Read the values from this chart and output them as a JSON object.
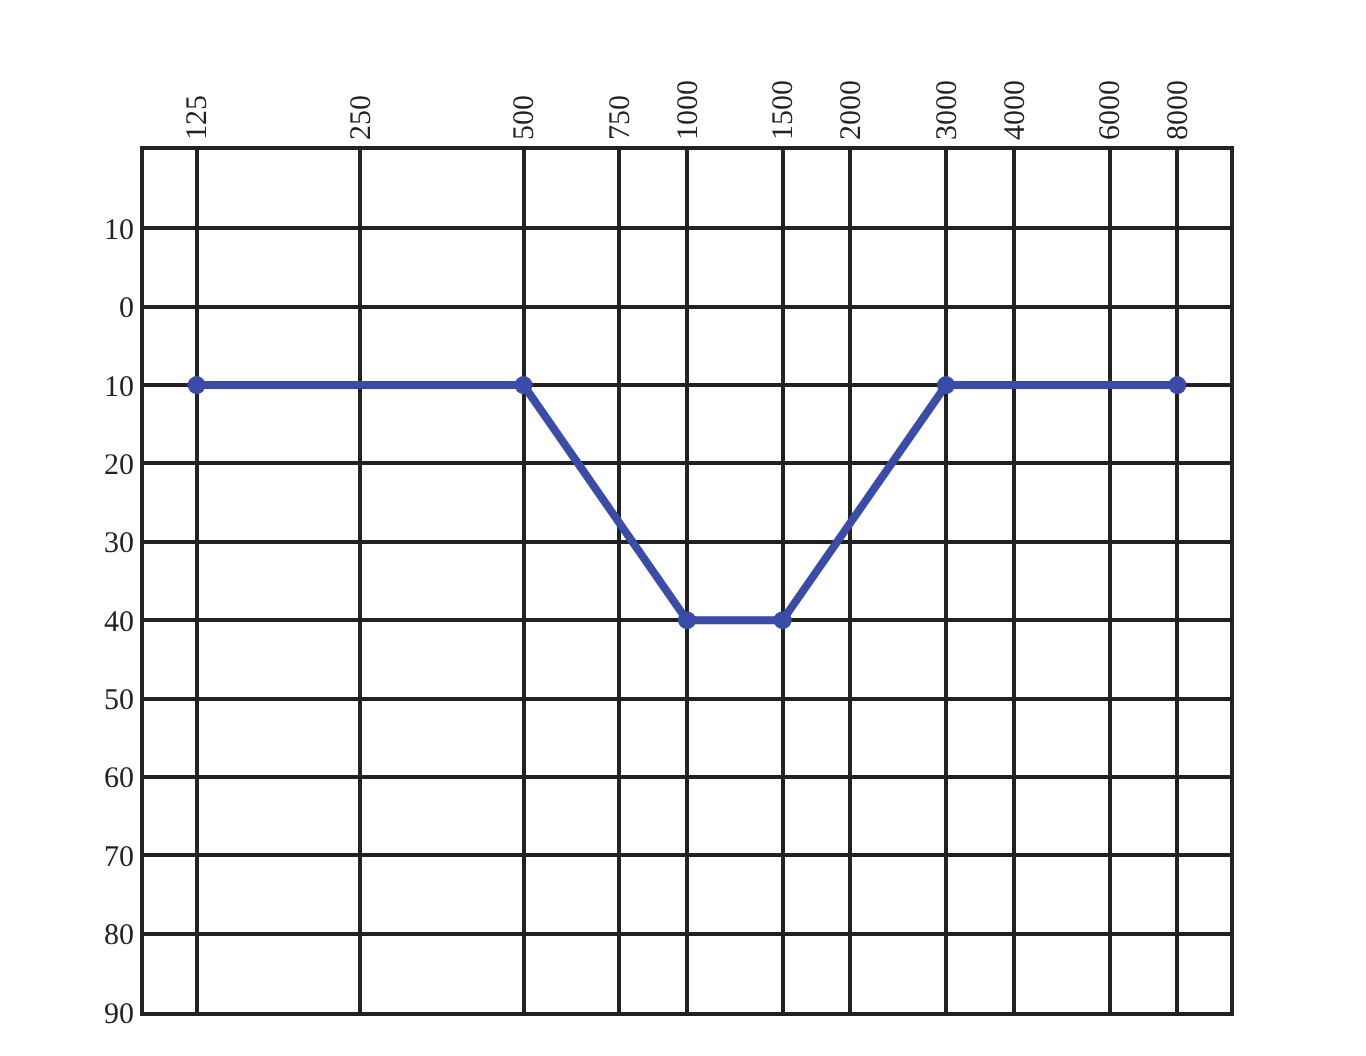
{
  "chart_data": {
    "type": "line",
    "x": [
      125,
      500,
      1000,
      1500,
      3000,
      8000
    ],
    "series": [
      {
        "color": "#3a4ca8",
        "values": [
          10,
          10,
          40,
          40,
          10,
          10
        ]
      }
    ],
    "log": "x",
    "xlim": [
      100,
      10000
    ],
    "xticks": [
      125,
      250,
      500,
      750,
      1000,
      1500,
      2000,
      3000,
      4000,
      6000,
      8000
    ],
    "ylim": [
      90,
      -20
    ],
    "yticks": [
      {
        "value": -10,
        "label": "10"
      },
      0,
      10,
      20,
      30,
      40,
      50,
      60,
      70,
      80,
      90
    ],
    "grid": true,
    "marker": "circle",
    "line_style": "solid"
  }
}
